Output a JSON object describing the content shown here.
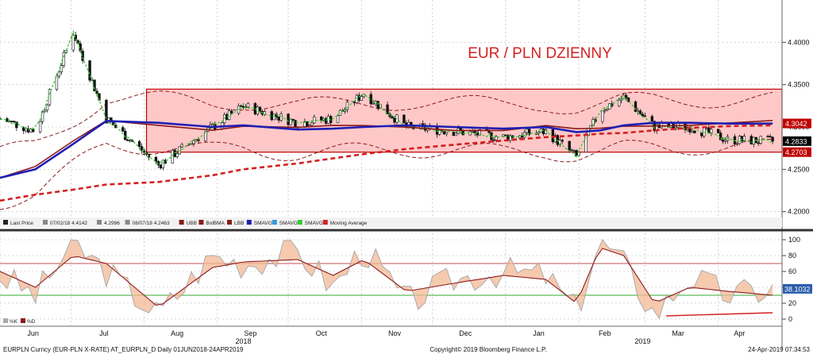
{
  "chart_data": [
    {
      "type": "candlestick",
      "title": "EUR / PLN DZIENNY",
      "instrument": "EURPLN Curncy (EUR-PLN X-RATE)",
      "months": [
        "Jun",
        "Jul",
        "Aug",
        "Sep",
        "Oct",
        "Nov",
        "Dec",
        "Jan",
        "Feb",
        "Mar",
        "Apr"
      ],
      "years": [
        "2018",
        "2019"
      ],
      "y_ticks": [
        "4.4000",
        "4.3500",
        "4.3000",
        "4.2500",
        "4.2000"
      ],
      "ylim": [
        4.195,
        4.45
      ],
      "value_labels": [
        {
          "text": "4.3042",
          "value": 4.3042,
          "color": "#c00000"
        },
        {
          "text": "4.2833",
          "value": 4.2833,
          "color": "#000000"
        },
        {
          "text": "4.2703",
          "value": 4.2703,
          "color": "#c00000"
        }
      ],
      "range_channel": {
        "top": 4.3447,
        "bottom": 4.2703,
        "color": "#ffc8c8",
        "border": "#c00000"
      },
      "legend": [
        {
          "label": "Last Price",
          "color": "#222222"
        },
        {
          "label": "07/02/18 4.4142",
          "color": "#888888"
        },
        {
          "label": "4.2996",
          "color": "#888888"
        },
        {
          "label": "08/07/18 4.2463",
          "color": "#888888"
        },
        {
          "label": "UBB",
          "color": "#8b1a1a"
        },
        {
          "label": "BolBMA",
          "color": "#8b1a1a"
        },
        {
          "label": "LBB",
          "color": "#8b1a1a"
        },
        {
          "label": "SMAVG",
          "color": "#1f1fb4"
        },
        {
          "label": "SMAVG",
          "color": "#3399dd"
        },
        {
          "label": "SMAVG",
          "color": "#33cc33"
        },
        {
          "label": "Moving Average",
          "color": "#d42020"
        }
      ],
      "x_dates": [
        "2018-06-01",
        "2018-06-16",
        "2018-07-02",
        "2018-07-16",
        "2018-08-07",
        "2018-08-30",
        "2018-09-12",
        "2018-10-05",
        "2018-10-20",
        "2018-11-02",
        "2018-11-20",
        "2018-12-10",
        "2018-12-31",
        "2019-01-18",
        "2019-01-31",
        "2019-02-10",
        "2019-02-20",
        "2019-03-05",
        "2019-03-20",
        "2019-04-05",
        "2019-04-24"
      ],
      "close_values": [
        4.31,
        4.295,
        4.412,
        4.31,
        4.255,
        4.3,
        4.325,
        4.305,
        4.31,
        4.34,
        4.3,
        4.295,
        4.288,
        4.295,
        4.265,
        4.32,
        4.335,
        4.3,
        4.3,
        4.285,
        4.283
      ],
      "series": [
        {
          "name": "SMAVG",
          "color": "#1f1fb4",
          "values": [
            4.24,
            4.25,
            4.28,
            4.307,
            4.305,
            4.3,
            4.302,
            4.297,
            4.298,
            4.3,
            4.302,
            4.3,
            4.298,
            4.3,
            4.294,
            4.296,
            4.302,
            4.305,
            4.305,
            4.304,
            4.304
          ]
        },
        {
          "name": "Moving Average",
          "color": "#d42020",
          "values": [
            4.213,
            4.22,
            4.226,
            4.232,
            4.235,
            4.243,
            4.25,
            4.257,
            4.263,
            4.268,
            4.274,
            4.279,
            4.284,
            4.288,
            4.29,
            4.292,
            4.293,
            4.296,
            4.299,
            4.301,
            4.302
          ]
        }
      ]
    },
    {
      "type": "line",
      "name": "stochastic oscillator",
      "y_ticks": [
        "100",
        "80",
        "60",
        "40",
        "20",
        "0"
      ],
      "ylim": [
        -8,
        108
      ],
      "reference_lines": [
        70,
        30
      ],
      "value_labels": [
        {
          "text": "38.1032",
          "value": 38.1032
        }
      ],
      "legend": [
        {
          "label": "%K",
          "color": "#aaaaaa"
        },
        {
          "label": "%D",
          "color": "#8b1a1a"
        }
      ],
      "x_dates": [
        "2018-06-01",
        "2018-06-16",
        "2018-07-02",
        "2018-07-16",
        "2018-08-07",
        "2018-08-30",
        "2018-09-12",
        "2018-10-05",
        "2018-10-20",
        "2018-11-02",
        "2018-11-20",
        "2018-12-10",
        "2018-12-31",
        "2019-01-18",
        "2019-01-31",
        "2019-02-10",
        "2019-02-20",
        "2019-03-05",
        "2019-03-20",
        "2019-04-05",
        "2019-04-24"
      ],
      "series": [
        {
          "name": "%K",
          "color": "#aaaaaa",
          "values": [
            55,
            30,
            95,
            60,
            5,
            80,
            70,
            85,
            40,
            90,
            20,
            50,
            60,
            55,
            10,
            100,
            70,
            5,
            55,
            30,
            38
          ]
        },
        {
          "name": "%D",
          "color": "#8b1a1a",
          "values": [
            60,
            40,
            80,
            70,
            15,
            65,
            72,
            75,
            55,
            75,
            35,
            45,
            55,
            50,
            20,
            90,
            80,
            20,
            40,
            35,
            30
          ]
        }
      ]
    }
  ],
  "footer": {
    "left": "EURPLN Curncy (EUR-PLN X-RATE) AT_EURPLN_D  Daily 01JUN2018-24APR2019",
    "center": "Copyright© 2019 Bloomberg Finance L.P.",
    "right": "24-Apr-2019 07:34:53"
  }
}
